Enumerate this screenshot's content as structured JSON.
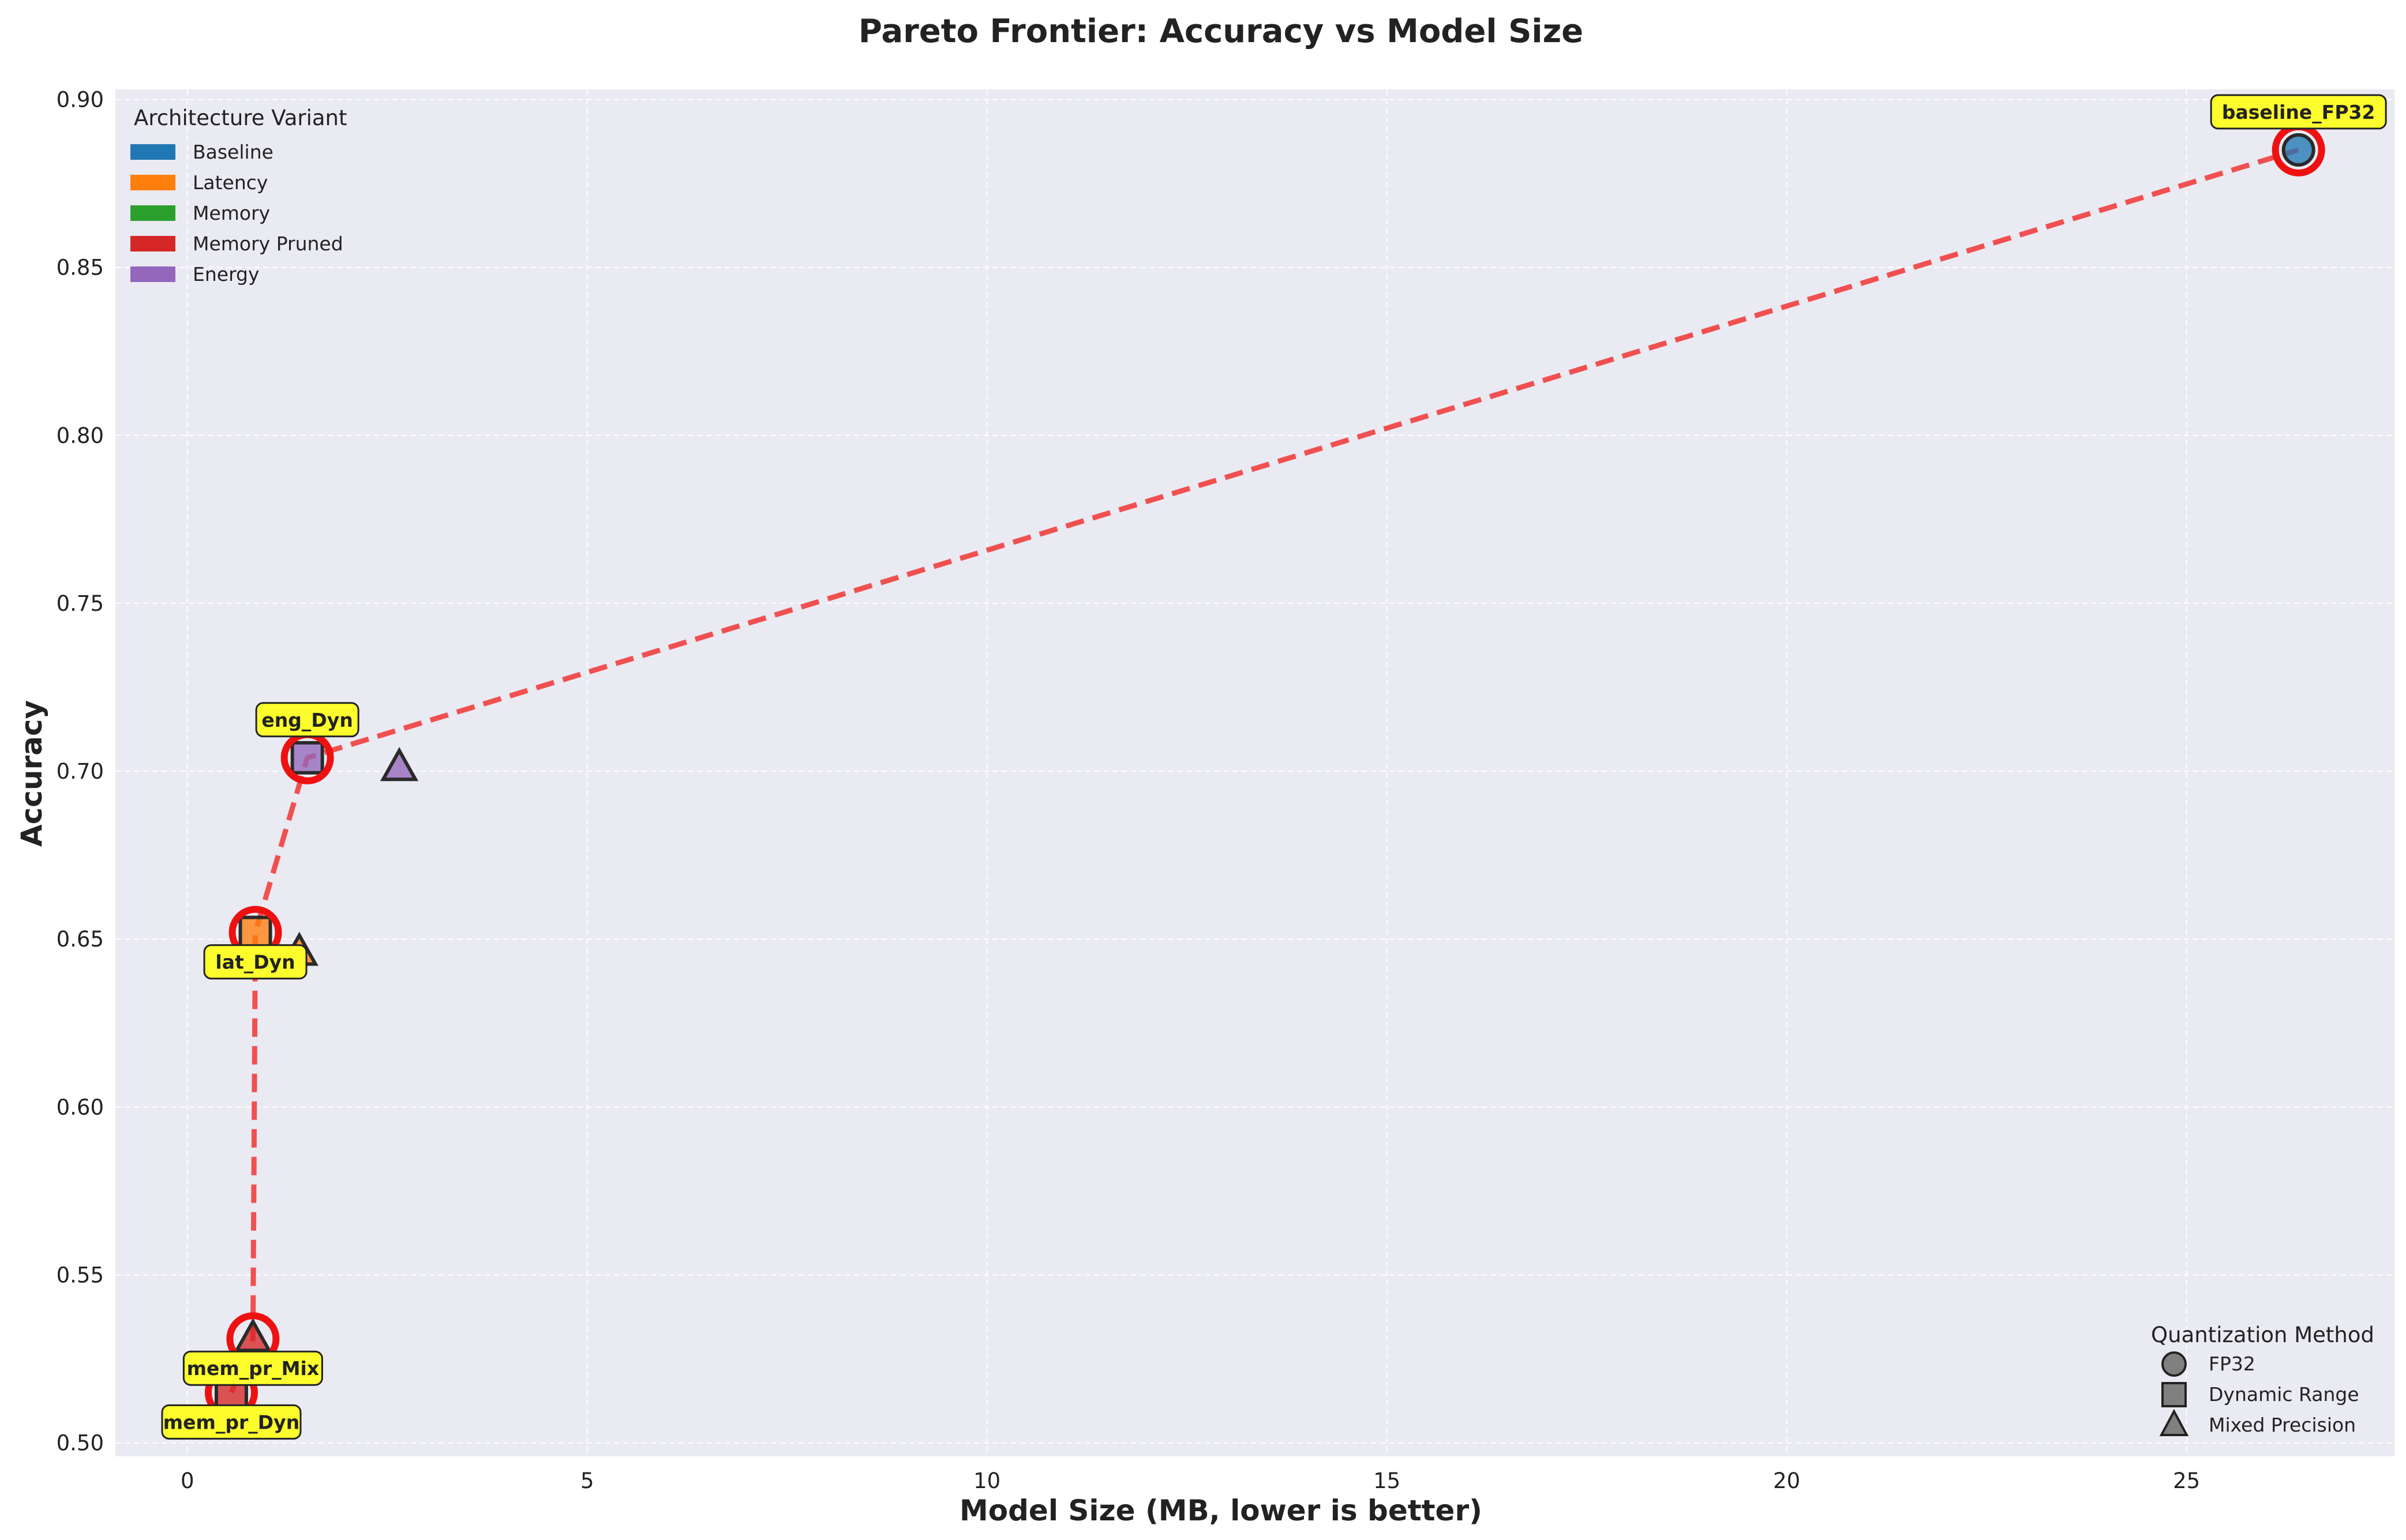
{
  "chart_data": {
    "type": "scatter",
    "title": "Pareto Frontier: Accuracy vs Model Size",
    "xlabel": "Model Size (MB, lower is better)",
    "ylabel": "Accuracy",
    "xlim": [
      -0.9,
      27.6
    ],
    "ylim": [
      0.496,
      0.903
    ],
    "xticks": [
      0,
      5,
      10,
      15,
      20,
      25
    ],
    "yticks": [
      0.5,
      0.55,
      0.6,
      0.65,
      0.7,
      0.75,
      0.8,
      0.85,
      0.9
    ],
    "xtick_labels": [
      "0",
      "5",
      "10",
      "15",
      "20",
      "25"
    ],
    "ytick_labels": [
      "0.50",
      "0.55",
      "0.60",
      "0.65",
      "0.70",
      "0.75",
      "0.80",
      "0.85",
      "0.90"
    ],
    "grid": true,
    "colors": {
      "background": "#eaeaf2",
      "grid": "#ffffff",
      "frontier": "#f05050",
      "highlight_ring": "#ee1111",
      "annotation_fill": "#fdfd2e"
    },
    "variant_legend": {
      "title": "Architecture Variant",
      "placement": "top-left",
      "entries": [
        {
          "name": "Baseline",
          "color": "#1f77b4"
        },
        {
          "name": "Latency",
          "color": "#ff7f0e"
        },
        {
          "name": "Memory",
          "color": "#2ca02c"
        },
        {
          "name": "Memory Pruned",
          "color": "#d62728"
        },
        {
          "name": "Energy",
          "color": "#9467bd"
        }
      ]
    },
    "quant_legend": {
      "title": "Quantization Method",
      "placement": "bottom-right",
      "entries": [
        {
          "name": "FP32",
          "marker": "circle"
        },
        {
          "name": "Dynamic Range",
          "marker": "square"
        },
        {
          "name": "Mixed Precision",
          "marker": "triangle"
        }
      ]
    },
    "points": [
      {
        "x": 26.4,
        "y": 0.885,
        "variant": "Baseline",
        "marker": "circle",
        "pareto": true,
        "annotation": "baseline_FP32",
        "ann_pos": "above"
      },
      {
        "x": 0.85,
        "y": 0.652,
        "variant": "Latency",
        "marker": "square",
        "pareto": true,
        "annotation": "lat_Dyn",
        "ann_pos": "below"
      },
      {
        "x": 1.4,
        "y": 0.646,
        "variant": "Latency",
        "marker": "triangle",
        "pareto": false
      },
      {
        "x": 1.5,
        "y": 0.704,
        "variant": "Energy",
        "marker": "square",
        "pareto": true,
        "annotation": "eng_Dyn",
        "ann_pos": "above"
      },
      {
        "x": 2.65,
        "y": 0.701,
        "variant": "Energy",
        "marker": "triangle",
        "pareto": false
      },
      {
        "x": 0.55,
        "y": 0.515,
        "variant": "Memory Pruned",
        "marker": "square",
        "pareto": true,
        "annotation": "mem_pr_Dyn",
        "ann_pos": "below"
      },
      {
        "x": 0.82,
        "y": 0.531,
        "variant": "Memory Pruned",
        "marker": "triangle",
        "pareto": true,
        "annotation": "mem_pr_Mix",
        "ann_pos": "below"
      }
    ],
    "frontier": [
      {
        "x": 0.55,
        "y": 0.515
      },
      {
        "x": 0.82,
        "y": 0.531
      },
      {
        "x": 0.85,
        "y": 0.652
      },
      {
        "x": 1.5,
        "y": 0.704
      },
      {
        "x": 26.4,
        "y": 0.885
      }
    ]
  }
}
